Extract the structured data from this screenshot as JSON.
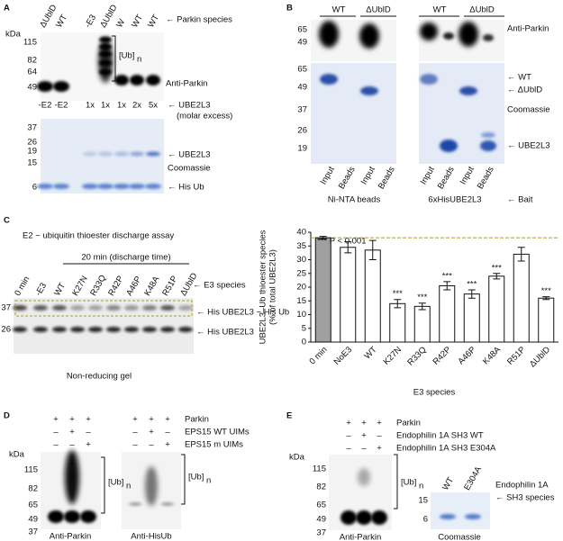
{
  "panel_a": {
    "letter": "A",
    "kda": "kDa",
    "lanes": [
      "ΔUblD",
      "WT",
      "-E3",
      "ΔUblD",
      "W",
      "WT",
      "WT"
    ],
    "lane_note": "← Parkin species",
    "blot_markers": [
      "115",
      "82",
      "64",
      "49"
    ],
    "ub_label": "[Ub]",
    "ub_subscript": "n",
    "blot_label": "Anti-Parkin",
    "conditions": [
      "-E2",
      "-E2",
      "1x",
      "1x",
      "1x",
      "2x",
      "5x"
    ],
    "condition_note": "← UBE2L3",
    "condition_note2": "(molar excess)",
    "gel_markers": [
      "37",
      "26",
      "19",
      "15",
      "6"
    ],
    "gel_labels": [
      "← UBE2L3",
      "Coomassie",
      "← His Ub"
    ]
  },
  "panel_b": {
    "letter": "B",
    "groups": [
      "WT",
      "ΔUblD",
      "WT",
      "ΔUblD"
    ],
    "blot_markers": [
      "65",
      "49"
    ],
    "gel_markers": [
      "65",
      "49",
      "37",
      "26",
      "19"
    ],
    "labels": [
      "Anti-Parkin",
      "← WT",
      "← ΔUblD",
      "Coomassie",
      "← UBE2L3"
    ],
    "lanes": [
      "Input",
      "Beads",
      "Input",
      "Beads",
      "Input",
      "Beads",
      "Input",
      "Beads"
    ],
    "bait": [
      "Ni-NTA beads",
      "6xHisUBE2L3"
    ],
    "bait_note": "← Bait"
  },
  "panel_c": {
    "letter": "C",
    "title": "E2 ~ ubiquitin thioester discharge assay",
    "time": "20 min (discharge time)",
    "lanes": [
      "0 min",
      "-E3",
      "WT",
      "K27N",
      "R33Q",
      "R42P",
      "A46P",
      "K48A",
      "R51P",
      "ΔUblD"
    ],
    "lane_note": "← E3 species",
    "markers": [
      "37",
      "26"
    ],
    "band_labels": [
      "← His UBE2L3 ~ His Ub",
      "← His UBE2L3"
    ],
    "caption": "Non-reducing gel"
  },
  "chart_data": {
    "type": "bar",
    "ylabel": [
      "UBE2L3–Ub thioester species",
      "(% of total UBE2L3)"
    ],
    "xlabel": "E3 species",
    "annotation": "*** P < 0.001",
    "categories": [
      "0 min",
      "NoE3",
      "WT",
      "K27N",
      "R33Q",
      "R42P",
      "A46P",
      "K48A",
      "R51P",
      "ΔUblD"
    ],
    "values": [
      38,
      34.5,
      33.5,
      14,
      13,
      20.5,
      17.5,
      24,
      32,
      16
    ],
    "errors": [
      0.5,
      2,
      3.5,
      1.5,
      1.2,
      1.5,
      1.5,
      1,
      2.5,
      0.5
    ],
    "colors": [
      "#a0a0a0",
      "#ffffff",
      "#ffffff",
      "#ffffff",
      "#ffffff",
      "#ffffff",
      "#ffffff",
      "#ffffff",
      "#ffffff",
      "#ffffff"
    ],
    "significance": [
      null,
      null,
      null,
      "***",
      "***",
      "***",
      "***",
      "***",
      null,
      "***"
    ],
    "reference_line": 38,
    "reference_color": "#a89a2c",
    "ylim": [
      0,
      40
    ],
    "yticks": [
      0,
      5,
      10,
      15,
      20,
      25,
      30,
      35,
      40
    ]
  },
  "panel_d": {
    "letter": "D",
    "conditions": [
      "Parkin",
      "EPS15 WT UIMs",
      "EPS15 m UIMs"
    ],
    "signs_left": [
      [
        "+",
        "+",
        "+"
      ],
      [
        "–",
        "+",
        "–"
      ],
      [
        "–",
        "–",
        "+"
      ]
    ],
    "signs_right": [
      [
        "+",
        "+",
        "+"
      ],
      [
        "–",
        "+",
        "–"
      ],
      [
        "–",
        "–",
        "+"
      ]
    ],
    "kda": "kDa",
    "markers": [
      "115",
      "82",
      "65",
      "49",
      "37"
    ],
    "ub_label": [
      "[Ub]",
      "[Ub]"
    ],
    "ub_subscript": [
      "n",
      "n"
    ],
    "blots": [
      "Anti-Parkin",
      "Anti-HisUb"
    ]
  },
  "panel_e": {
    "letter": "E",
    "conditions": [
      "Parkin",
      "Endophilin 1A SH3 WT",
      "Endophilin 1A SH3 E304A"
    ],
    "signs": [
      [
        "+",
        "+",
        "+"
      ],
      [
        "–",
        "+",
        "–"
      ],
      [
        "–",
        "–",
        "+"
      ]
    ],
    "kda": "kDa",
    "markers": [
      "115",
      "82",
      "65",
      "49",
      "37"
    ],
    "ub_label": "[Ub]",
    "ub_subscript": "n",
    "blot": "Anti-Parkin",
    "gel_lanes": [
      "WT",
      "E304A"
    ],
    "gel_markers": [
      "15",
      "6"
    ],
    "gel_labels": [
      "Endophilin 1A",
      "← SH3 species"
    ],
    "gel_caption": "Coomassie"
  }
}
